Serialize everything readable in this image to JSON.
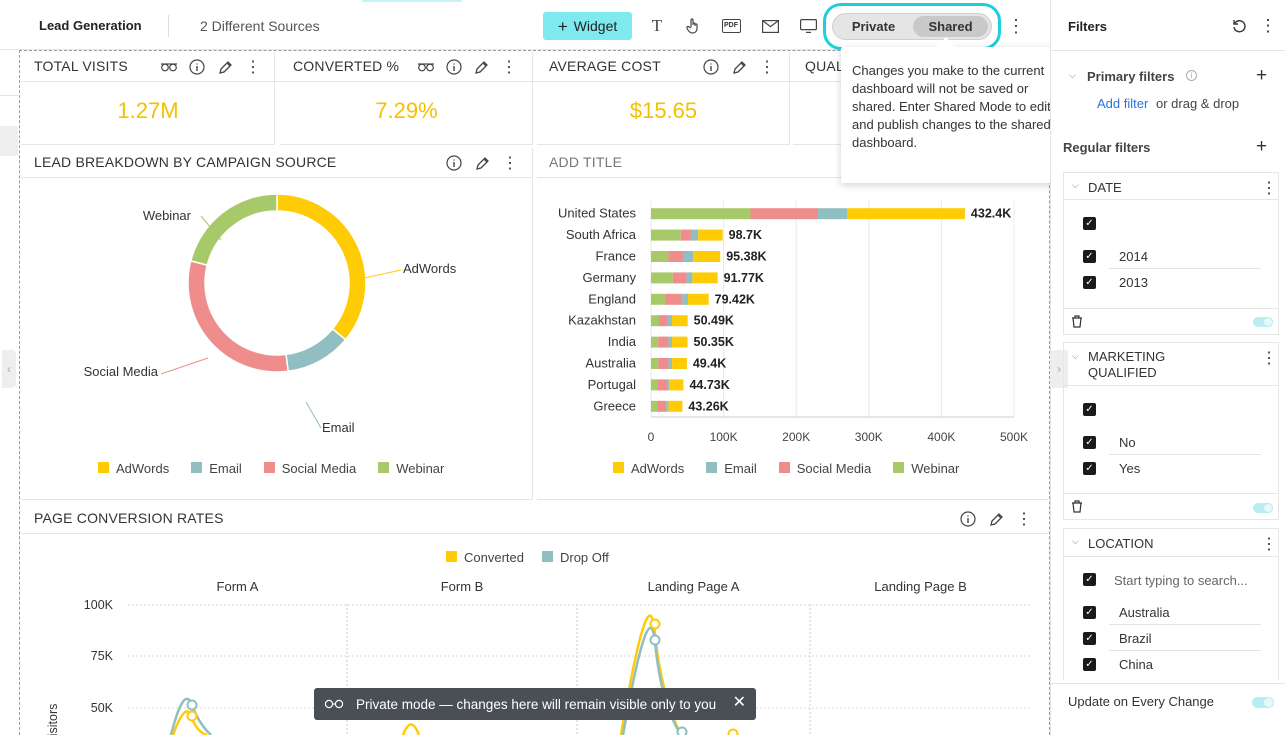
{
  "header": {
    "title": "Lead Generation",
    "subtitle": "2 Different Sources",
    "widget_label": "Widget",
    "private_label": "Private",
    "shared_label": "Shared",
    "pdf_label": "PDF"
  },
  "tooltip": {
    "text": "Changes you make to the current dashboard will not be saved or shared. Enter Shared Mode to edit and publish changes to the shared dashboard."
  },
  "kpis": [
    {
      "title": "TOTAL VISITS",
      "value": "1.27M"
    },
    {
      "title": "CONVERTED %",
      "value": "7.29%"
    },
    {
      "title": "AVERAGE COST",
      "value": "$15.65"
    },
    {
      "title": "QUAL",
      "value": ""
    }
  ],
  "donut": {
    "title": "LEAD BREAKDOWN BY CAMPAIGN SOURCE",
    "chart_data": {
      "type": "pie",
      "slices": [
        {
          "name": "AdWords",
          "value": 36,
          "color": "#ffcb05"
        },
        {
          "name": "Email",
          "value": 12,
          "color": "#91bfc1"
        },
        {
          "name": "Social Media",
          "value": 31,
          "color": "#ef8c8c"
        },
        {
          "name": "Webinar",
          "value": 21,
          "color": "#a8c96a"
        }
      ]
    }
  },
  "bars": {
    "title": "ADD TITLE",
    "chart_data": {
      "type": "bar",
      "orientation": "horizontal",
      "stacked": true,
      "categories": [
        "United States",
        "South Africa",
        "France",
        "Germany",
        "England",
        "Kazakhstan",
        "India",
        "Australia",
        "Portugal",
        "Greece"
      ],
      "totals_label": [
        "432.4K",
        "98.7K",
        "95.38K",
        "91.77K",
        "79.42K",
        "50.49K",
        "50.35K",
        "49.4K",
        "44.73K",
        "43.26K"
      ],
      "xlim": [
        0,
        500000
      ],
      "xticks": [
        "0",
        "100K",
        "200K",
        "300K",
        "400K",
        "500K"
      ],
      "series": [
        {
          "name": "Webinar",
          "color": "#a8c96a",
          "values": [
            137000,
            41000,
            24000,
            30000,
            20000,
            11000,
            10000,
            10000,
            9000,
            9000
          ]
        },
        {
          "name": "Social Media",
          "color": "#ef8c8c",
          "values": [
            93000,
            14000,
            20000,
            19000,
            23000,
            11000,
            14000,
            14000,
            13000,
            12000
          ]
        },
        {
          "name": "Email",
          "color": "#91bfc1",
          "values": [
            40000,
            10000,
            14000,
            8000,
            8000,
            7000,
            5000,
            5000,
            3000,
            3000
          ]
        },
        {
          "name": "AdWords",
          "color": "#ffcb05",
          "values": [
            162400,
            33700,
            37380,
            34770,
            28420,
            21490,
            21350,
            20400,
            19730,
            19260
          ]
        }
      ],
      "legend": [
        "AdWords",
        "Email",
        "Social Media",
        "Webinar"
      ]
    }
  },
  "conv": {
    "title": "PAGE CONVERSION RATES",
    "chart_data": {
      "type": "line",
      "facets": [
        "Form A",
        "Form B",
        "Landing Page A",
        "Landing Page B"
      ],
      "ylabel": "Visitors",
      "yticks": [
        "100K",
        "75K",
        "50K"
      ],
      "series": [
        {
          "name": "Converted",
          "color": "#ffcb05"
        },
        {
          "name": "Drop Off",
          "color": "#91bfc1"
        }
      ]
    }
  },
  "toast": {
    "text": "Private mode — changes here will remain visible only to you"
  },
  "filters": {
    "title": "Filters",
    "primary_label": "Primary filters",
    "add_filter": "Add filter",
    "drag_text": "or drag & drop",
    "regular_label": "Regular filters",
    "groups": [
      {
        "name": "DATE",
        "items": [
          "2014",
          "2013"
        ]
      },
      {
        "name": "MARKETING",
        "name2": "QUALIFIED",
        "items": [
          "No",
          "Yes"
        ]
      },
      {
        "name": "LOCATION",
        "search": "Start typing to search...",
        "items": [
          "Australia",
          "Brazil",
          "China"
        ]
      }
    ],
    "update_label": "Update on Every Change"
  },
  "colors": {
    "accent": "#1bd0dc",
    "kpi": "#f5c000",
    "widget_btn": "#7ee9ef"
  }
}
